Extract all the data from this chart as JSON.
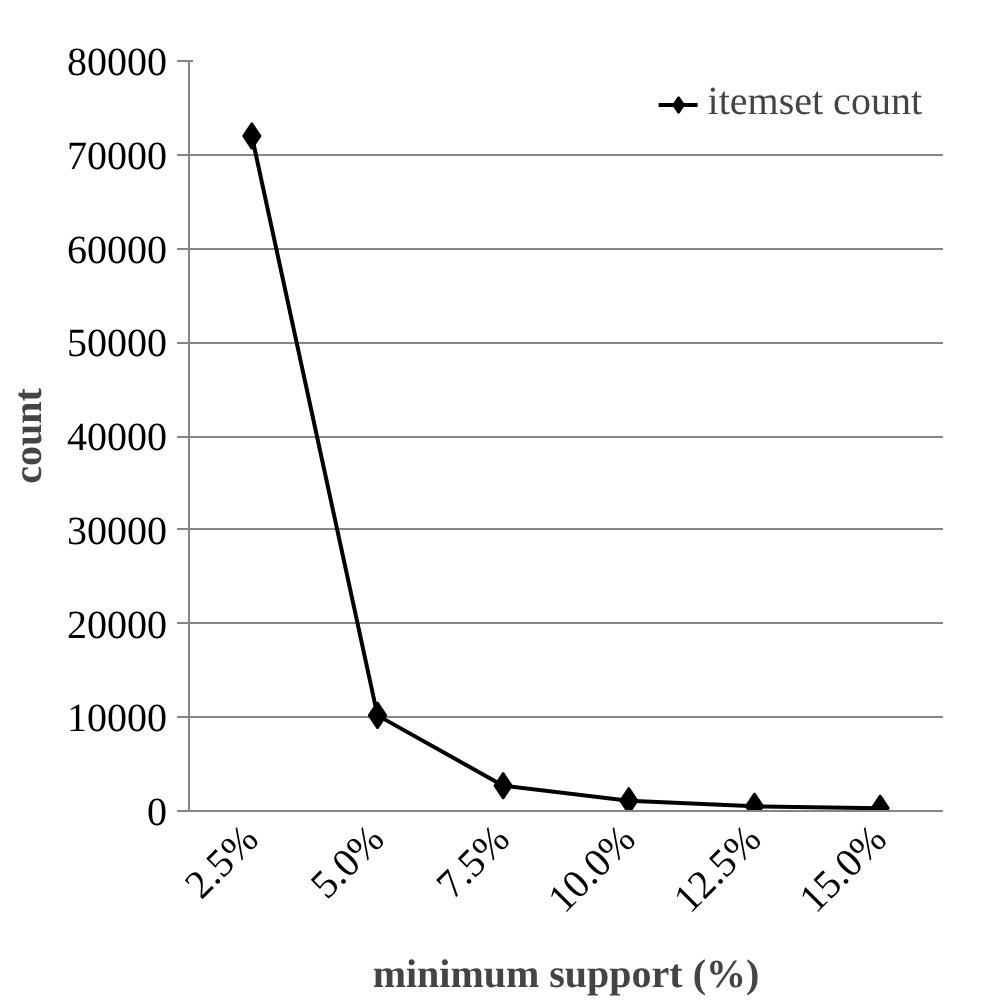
{
  "chart_data": {
    "type": "line",
    "xlabel": "minimum support (%)",
    "ylabel": "count",
    "categories": [
      "2.5%",
      "5.0%",
      "7.5%",
      "10.0%",
      "12.5%",
      "15.0%"
    ],
    "series": [
      {
        "name": "itemset count",
        "color": "#000000",
        "values": [
          72000,
          10200,
          2700,
          1100,
          500,
          300
        ]
      }
    ],
    "ylim": [
      0,
      80000
    ],
    "yticks": [
      0,
      10000,
      20000,
      30000,
      40000,
      50000,
      60000,
      70000,
      80000
    ],
    "grid": "y",
    "legend": "top right",
    "marker": "diamond",
    "line_style": "solid"
  }
}
